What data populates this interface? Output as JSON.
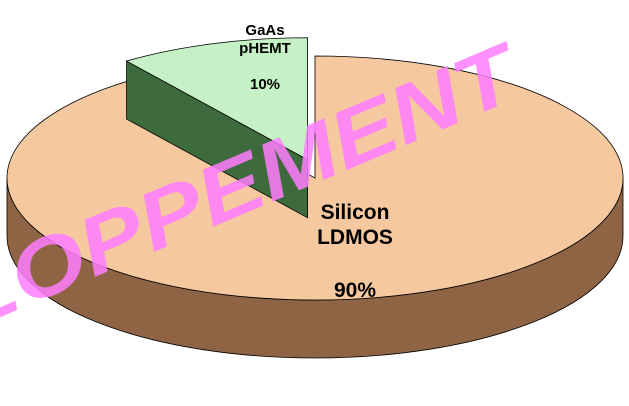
{
  "chart_data": {
    "type": "pie",
    "categories": [
      "GaAs pHEMT",
      "Silicon LDMOS"
    ],
    "values": [
      10,
      90
    ],
    "value_labels": [
      "10%",
      "90%"
    ],
    "colors": [
      "#c6f0c6",
      "#f5c8a0"
    ],
    "side_colors": [
      "#3d6b3d",
      "#8e6444"
    ],
    "watermark": "LOPPEMENT"
  }
}
